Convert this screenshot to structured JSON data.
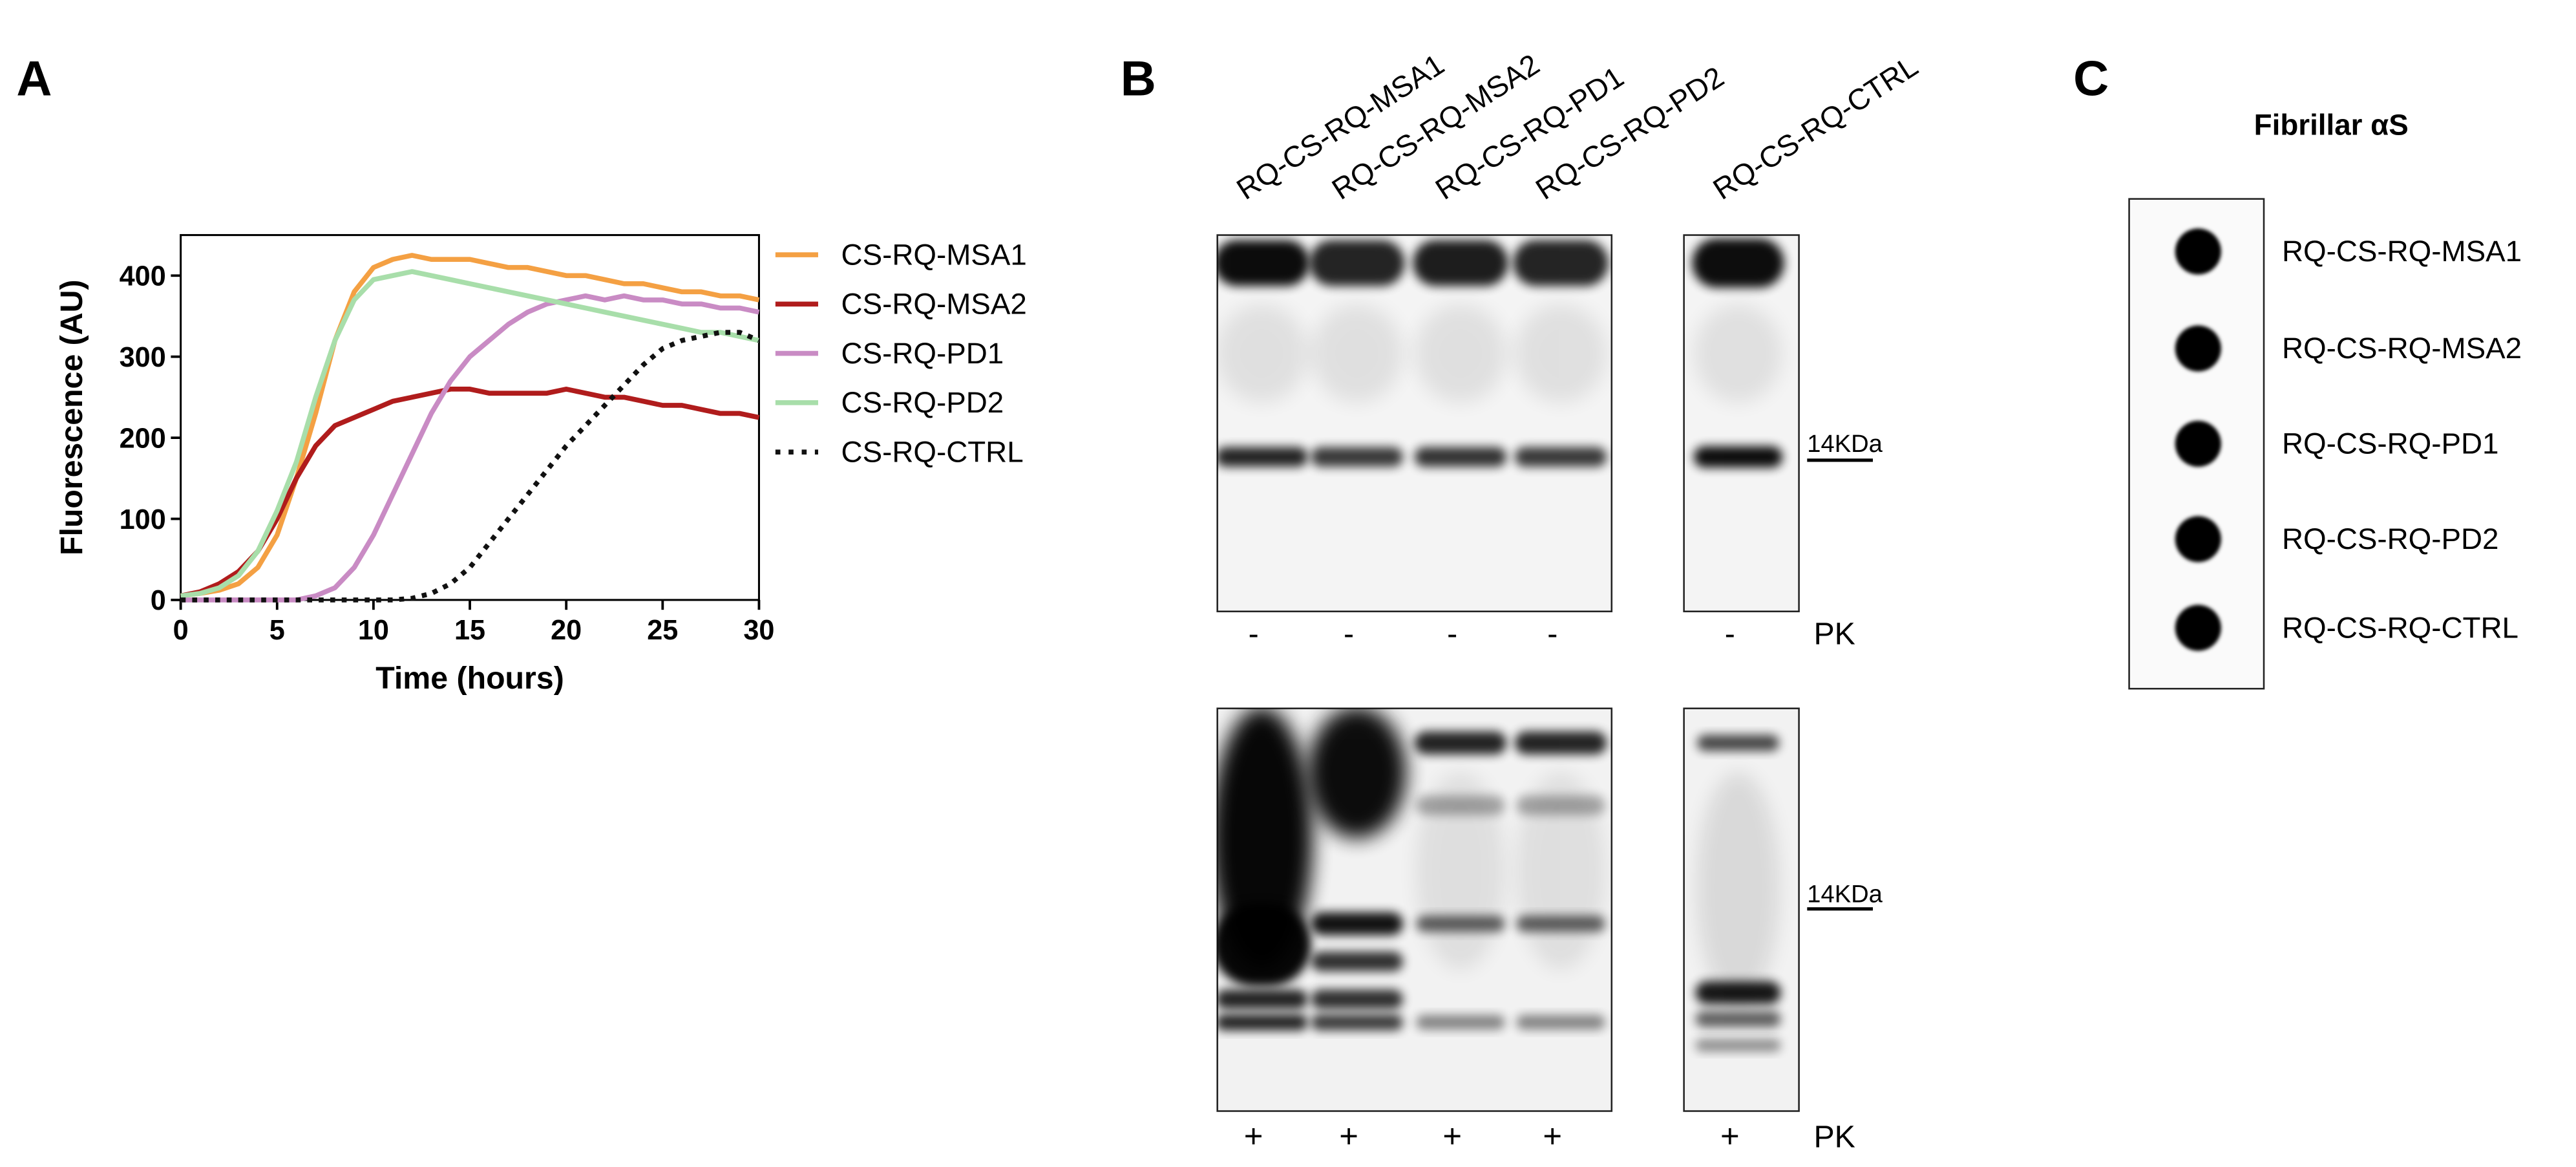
{
  "panel_labels": [
    "A",
    "B",
    "C"
  ],
  "chart_data": {
    "type": "line",
    "xlabel": "Time (hours)",
    "ylabel": "Fluorescence (AU)",
    "x": [
      0,
      1,
      2,
      3,
      4,
      5,
      6,
      7,
      8,
      9,
      10,
      11,
      12,
      13,
      14,
      15,
      16,
      17,
      18,
      19,
      20,
      21,
      22,
      23,
      24,
      25,
      26,
      27,
      28,
      29,
      30
    ],
    "xlim": [
      0,
      30
    ],
    "xticks": [
      0,
      5,
      10,
      15,
      20,
      25,
      30
    ],
    "ylim": [
      0,
      450
    ],
    "yticks": [
      0,
      100,
      200,
      300,
      400
    ],
    "series": [
      {
        "name": "CS-RQ-MSA1",
        "color": "#f4a043",
        "dash": false,
        "values": [
          5,
          8,
          12,
          20,
          40,
          80,
          150,
          230,
          320,
          380,
          410,
          420,
          425,
          420,
          420,
          420,
          415,
          410,
          410,
          405,
          400,
          400,
          395,
          390,
          390,
          385,
          380,
          380,
          375,
          375,
          370
        ]
      },
      {
        "name": "CS-RQ-MSA2",
        "color": "#b01c1c",
        "dash": false,
        "values": [
          5,
          10,
          20,
          35,
          60,
          100,
          150,
          190,
          215,
          225,
          235,
          245,
          250,
          255,
          260,
          260,
          255,
          255,
          255,
          255,
          260,
          255,
          250,
          250,
          245,
          240,
          240,
          235,
          230,
          230,
          225
        ]
      },
      {
        "name": "CS-RQ-PD1",
        "color": "#c98bc4",
        "dash": false,
        "values": [
          0,
          0,
          0,
          0,
          0,
          0,
          0,
          5,
          15,
          40,
          80,
          130,
          180,
          230,
          270,
          300,
          320,
          340,
          355,
          365,
          370,
          375,
          370,
          375,
          370,
          370,
          365,
          365,
          360,
          360,
          355
        ]
      },
      {
        "name": "CS-RQ-PD2",
        "color": "#a8deaa",
        "dash": false,
        "values": [
          5,
          8,
          15,
          30,
          60,
          110,
          170,
          250,
          320,
          370,
          395,
          400,
          405,
          400,
          395,
          390,
          385,
          380,
          375,
          370,
          365,
          360,
          355,
          350,
          345,
          340,
          335,
          330,
          330,
          325,
          320
        ]
      },
      {
        "name": "CS-RQ-CTRL",
        "color": "#111111",
        "dash": true,
        "values": [
          0,
          0,
          0,
          0,
          0,
          0,
          0,
          0,
          0,
          0,
          0,
          0,
          2,
          8,
          20,
          40,
          70,
          100,
          130,
          160,
          190,
          215,
          240,
          265,
          290,
          310,
          320,
          325,
          330,
          330,
          320
        ]
      }
    ]
  },
  "blot": {
    "lanes": [
      "RQ-CS-RQ-MSA1",
      "RQ-CS-RQ-MSA2",
      "RQ-CS-RQ-PD1",
      "RQ-CS-RQ-PD2",
      "RQ-CS-RQ-CTRL"
    ],
    "marker": "14KDa",
    "top_sign": "-",
    "bottom_sign": "+",
    "treatment": "PK"
  },
  "dot_blot": {
    "title": "Fibrillar αS",
    "labels": [
      "RQ-CS-RQ-MSA1",
      "RQ-CS-RQ-MSA2",
      "RQ-CS-RQ-PD1",
      "RQ-CS-RQ-PD2",
      "RQ-CS-RQ-CTRL"
    ]
  }
}
